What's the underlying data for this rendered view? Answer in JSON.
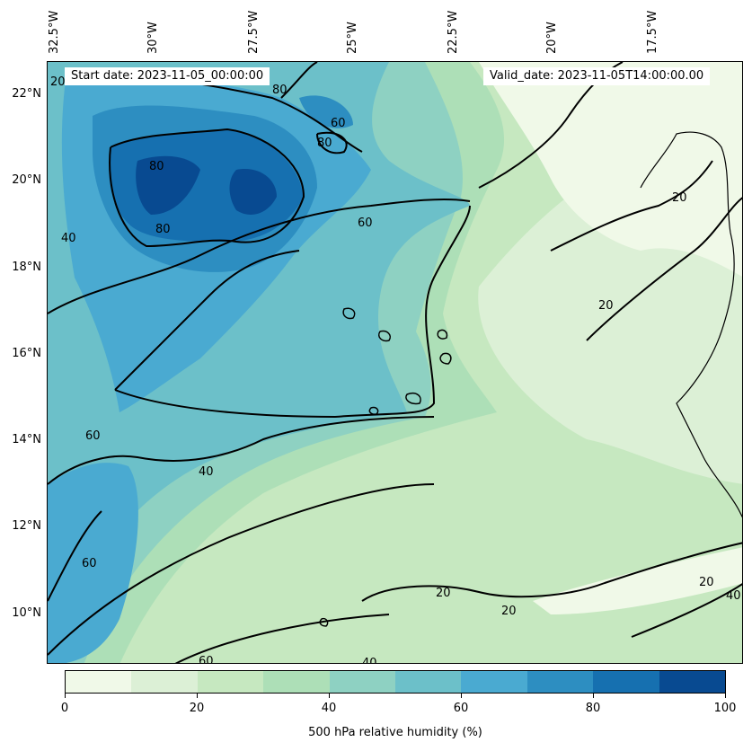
{
  "map": {
    "start_date": "Start date: 2023-11-05_00:00:00",
    "valid_date": "Valid_date: 2023-11-05T14:00:00.00",
    "lon_labels": [
      "32.5°W",
      "30°W",
      "27.5°W",
      "25°W",
      "22.5°W",
      "20°W",
      "17.5°W"
    ],
    "lat_labels": [
      "22°N",
      "20°N",
      "18°N",
      "16°N",
      "14°N",
      "12°N",
      "10°N"
    ],
    "contour_labels": [
      "20",
      "40",
      "60",
      "80",
      "60",
      "80",
      "80",
      "80",
      "60",
      "20",
      "20",
      "60",
      "40",
      "60",
      "40",
      "20",
      "20",
      "20",
      "40",
      "40",
      "60"
    ]
  },
  "colorbar": {
    "title": "500 hPa relative humidity (%)",
    "tick_labels": [
      "0",
      "20",
      "40",
      "60",
      "80",
      "100"
    ],
    "colors": [
      "#f0f9e8",
      "#dcf0d6",
      "#c6e8c0",
      "#addfb7",
      "#8ed1c2",
      "#6cc0c9",
      "#4aaad1",
      "#2d8ec1",
      "#1670b0",
      "#084a91"
    ]
  }
}
